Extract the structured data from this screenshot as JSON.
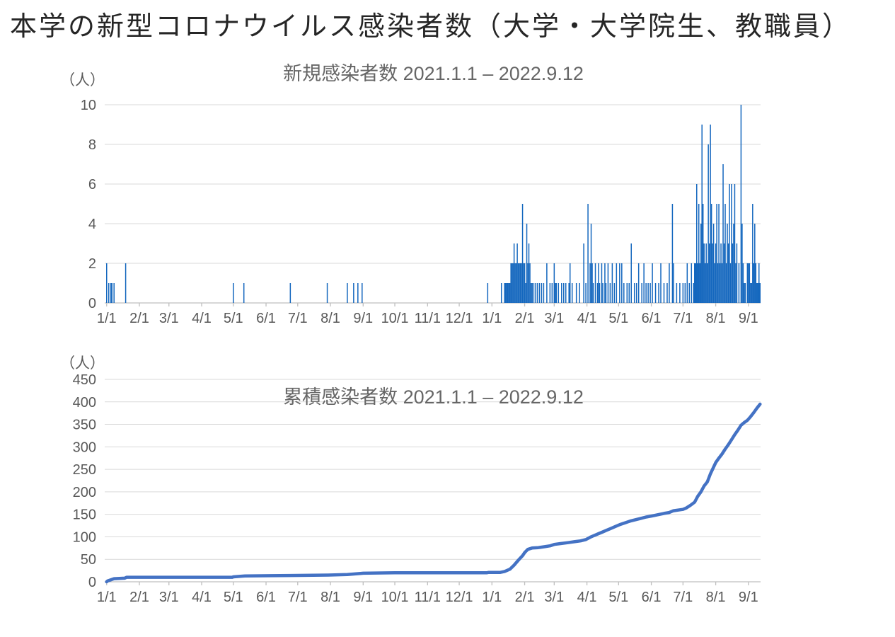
{
  "page_title": "本学の新型コロナウイルス感染者数（大学・大学院生、教職員）",
  "style": {
    "grid_color": "#d9d9d9",
    "axis_color": "#bfbfbf",
    "tick_text_color": "#595959",
    "title_color": "#666666",
    "page_title_color": "#262626"
  },
  "chart_data": [
    {
      "type": "bar",
      "title": "新規感染者数 2021.1.1 – 2022.9.12",
      "unit_label": "（人）",
      "ylabel": "人",
      "ylim": [
        0,
        10
      ],
      "yticks": [
        0,
        2,
        4,
        6,
        8,
        10
      ],
      "x_start": "2021-01-01",
      "x_end": "2022-09-12",
      "xtick_labels": [
        "1/1",
        "2/1",
        "3/1",
        "4/1",
        "5/1",
        "6/1",
        "7/1",
        "8/1",
        "9/1",
        "10/1",
        "11/1",
        "12/1",
        "1/1",
        "2/1",
        "3/1",
        "4/1",
        "5/1",
        "6/1",
        "7/1",
        "8/1",
        "9/1"
      ],
      "grid": true,
      "legend": "none",
      "bar_color": "#1467be",
      "daily_cases": [
        [
          "2021-01-01",
          2
        ],
        [
          "2021-01-03",
          1
        ],
        [
          "2021-01-05",
          1
        ],
        [
          "2021-01-06",
          1
        ],
        [
          "2021-01-08",
          1
        ],
        [
          "2021-01-19",
          2
        ],
        [
          "2021-05-01",
          1
        ],
        [
          "2021-05-11",
          1
        ],
        [
          "2021-06-24",
          1
        ],
        [
          "2021-07-29",
          1
        ],
        [
          "2021-08-17",
          1
        ],
        [
          "2021-08-23",
          1
        ],
        [
          "2021-08-27",
          1
        ],
        [
          "2021-08-31",
          1
        ],
        [
          "2021-12-28",
          1
        ],
        [
          "2022-01-10",
          1
        ],
        [
          "2022-01-13",
          1
        ],
        [
          "2022-01-14",
          1
        ],
        [
          "2022-01-15",
          1
        ],
        [
          "2022-01-16",
          1
        ],
        [
          "2022-01-17",
          1
        ],
        [
          "2022-01-18",
          1
        ],
        [
          "2022-01-19",
          2
        ],
        [
          "2022-01-20",
          2
        ],
        [
          "2022-01-21",
          2
        ],
        [
          "2022-01-22",
          3
        ],
        [
          "2022-01-23",
          2
        ],
        [
          "2022-01-24",
          2
        ],
        [
          "2022-01-25",
          3
        ],
        [
          "2022-01-26",
          2
        ],
        [
          "2022-01-27",
          2
        ],
        [
          "2022-01-28",
          2
        ],
        [
          "2022-01-29",
          2
        ],
        [
          "2022-01-30",
          5
        ],
        [
          "2022-01-31",
          2
        ],
        [
          "2022-02-01",
          2
        ],
        [
          "2022-02-02",
          1
        ],
        [
          "2022-02-03",
          4
        ],
        [
          "2022-02-04",
          2
        ],
        [
          "2022-02-05",
          3
        ],
        [
          "2022-02-06",
          2
        ],
        [
          "2022-02-07",
          1
        ],
        [
          "2022-02-08",
          1
        ],
        [
          "2022-02-09",
          1
        ],
        [
          "2022-02-11",
          1
        ],
        [
          "2022-02-13",
          1
        ],
        [
          "2022-02-15",
          1
        ],
        [
          "2022-02-17",
          1
        ],
        [
          "2022-02-19",
          1
        ],
        [
          "2022-02-22",
          2
        ],
        [
          "2022-02-25",
          1
        ],
        [
          "2022-02-27",
          1
        ],
        [
          "2022-03-01",
          2
        ],
        [
          "2022-03-02",
          1
        ],
        [
          "2022-03-03",
          1
        ],
        [
          "2022-03-05",
          1
        ],
        [
          "2022-03-08",
          1
        ],
        [
          "2022-03-10",
          1
        ],
        [
          "2022-03-12",
          1
        ],
        [
          "2022-03-15",
          1
        ],
        [
          "2022-03-16",
          2
        ],
        [
          "2022-03-18",
          1
        ],
        [
          "2022-03-22",
          1
        ],
        [
          "2022-03-25",
          1
        ],
        [
          "2022-03-29",
          3
        ],
        [
          "2022-03-31",
          1
        ],
        [
          "2022-04-02",
          5
        ],
        [
          "2022-04-04",
          2
        ],
        [
          "2022-04-05",
          4
        ],
        [
          "2022-04-06",
          2
        ],
        [
          "2022-04-07",
          1
        ],
        [
          "2022-04-09",
          2
        ],
        [
          "2022-04-11",
          1
        ],
        [
          "2022-04-12",
          2
        ],
        [
          "2022-04-13",
          1
        ],
        [
          "2022-04-15",
          2
        ],
        [
          "2022-04-16",
          1
        ],
        [
          "2022-04-18",
          2
        ],
        [
          "2022-04-19",
          1
        ],
        [
          "2022-04-21",
          2
        ],
        [
          "2022-04-23",
          1
        ],
        [
          "2022-04-25",
          2
        ],
        [
          "2022-04-27",
          1
        ],
        [
          "2022-04-29",
          2
        ],
        [
          "2022-05-02",
          2
        ],
        [
          "2022-05-04",
          2
        ],
        [
          "2022-05-06",
          1
        ],
        [
          "2022-05-09",
          1
        ],
        [
          "2022-05-11",
          1
        ],
        [
          "2022-05-13",
          3
        ],
        [
          "2022-05-16",
          1
        ],
        [
          "2022-05-18",
          1
        ],
        [
          "2022-05-20",
          2
        ],
        [
          "2022-05-23",
          1
        ],
        [
          "2022-05-25",
          2
        ],
        [
          "2022-05-27",
          1
        ],
        [
          "2022-05-29",
          1
        ],
        [
          "2022-05-31",
          1
        ],
        [
          "2022-06-02",
          2
        ],
        [
          "2022-06-05",
          1
        ],
        [
          "2022-06-08",
          1
        ],
        [
          "2022-06-10",
          2
        ],
        [
          "2022-06-13",
          1
        ],
        [
          "2022-06-16",
          1
        ],
        [
          "2022-06-18",
          2
        ],
        [
          "2022-06-21",
          5
        ],
        [
          "2022-06-22",
          2
        ],
        [
          "2022-06-25",
          1
        ],
        [
          "2022-06-28",
          1
        ],
        [
          "2022-07-01",
          1
        ],
        [
          "2022-07-03",
          1
        ],
        [
          "2022-07-05",
          2
        ],
        [
          "2022-07-07",
          1
        ],
        [
          "2022-07-09",
          2
        ],
        [
          "2022-07-11",
          1
        ],
        [
          "2022-07-12",
          2
        ],
        [
          "2022-07-13",
          2
        ],
        [
          "2022-07-14",
          6
        ],
        [
          "2022-07-15",
          2
        ],
        [
          "2022-07-16",
          5
        ],
        [
          "2022-07-17",
          2
        ],
        [
          "2022-07-18",
          4
        ],
        [
          "2022-07-19",
          9
        ],
        [
          "2022-07-20",
          5
        ],
        [
          "2022-07-21",
          3
        ],
        [
          "2022-07-22",
          2
        ],
        [
          "2022-07-23",
          3
        ],
        [
          "2022-07-24",
          2
        ],
        [
          "2022-07-25",
          8
        ],
        [
          "2022-07-26",
          3
        ],
        [
          "2022-07-27",
          9
        ],
        [
          "2022-07-28",
          5
        ],
        [
          "2022-07-29",
          3
        ],
        [
          "2022-07-30",
          4
        ],
        [
          "2022-07-31",
          2
        ],
        [
          "2022-08-01",
          3
        ],
        [
          "2022-08-02",
          5
        ],
        [
          "2022-08-03",
          2
        ],
        [
          "2022-08-04",
          5
        ],
        [
          "2022-08-05",
          2
        ],
        [
          "2022-08-06",
          3
        ],
        [
          "2022-08-07",
          2
        ],
        [
          "2022-08-08",
          7
        ],
        [
          "2022-08-09",
          3
        ],
        [
          "2022-08-10",
          5
        ],
        [
          "2022-08-11",
          2
        ],
        [
          "2022-08-12",
          4
        ],
        [
          "2022-08-13",
          3
        ],
        [
          "2022-08-14",
          6
        ],
        [
          "2022-08-15",
          2
        ],
        [
          "2022-08-16",
          6
        ],
        [
          "2022-08-17",
          3
        ],
        [
          "2022-08-18",
          4
        ],
        [
          "2022-08-19",
          6
        ],
        [
          "2022-08-20",
          2
        ],
        [
          "2022-08-21",
          3
        ],
        [
          "2022-08-23",
          2
        ],
        [
          "2022-08-25",
          10
        ],
        [
          "2022-08-26",
          4
        ],
        [
          "2022-08-27",
          2
        ],
        [
          "2022-08-28",
          1
        ],
        [
          "2022-08-29",
          1
        ],
        [
          "2022-08-31",
          2
        ],
        [
          "2022-09-01",
          2
        ],
        [
          "2022-09-02",
          2
        ],
        [
          "2022-09-03",
          1
        ],
        [
          "2022-09-04",
          1
        ],
        [
          "2022-09-05",
          5
        ],
        [
          "2022-09-06",
          2
        ],
        [
          "2022-09-07",
          4
        ],
        [
          "2022-09-08",
          2
        ],
        [
          "2022-09-09",
          1
        ],
        [
          "2022-09-10",
          1
        ],
        [
          "2022-09-11",
          2
        ],
        [
          "2022-09-12",
          1
        ]
      ]
    },
    {
      "type": "line",
      "title": "累積感染者数 2021.1.1 – 2022.9.12",
      "unit_label": "（人）",
      "ylabel": "人",
      "ylim": [
        0,
        450
      ],
      "yticks": [
        0,
        50,
        100,
        150,
        200,
        250,
        300,
        350,
        400,
        450
      ],
      "x_start": "2021-01-01",
      "x_end": "2022-09-12",
      "xtick_labels": [
        "1/1",
        "2/1",
        "3/1",
        "4/1",
        "5/1",
        "6/1",
        "7/1",
        "8/1",
        "9/1",
        "10/1",
        "11/1",
        "12/1",
        "1/1",
        "2/1",
        "3/1",
        "4/1",
        "5/1",
        "6/1",
        "7/1",
        "8/1",
        "9/1"
      ],
      "grid": true,
      "legend": "none",
      "line_color": "#4472c4",
      "points": [
        [
          "2021-01-01",
          0
        ],
        [
          "2021-01-02",
          2
        ],
        [
          "2021-01-08",
          7
        ],
        [
          "2021-01-18",
          8
        ],
        [
          "2021-01-20",
          10
        ],
        [
          "2021-02-01",
          10
        ],
        [
          "2021-04-30",
          10
        ],
        [
          "2021-05-01",
          11
        ],
        [
          "2021-05-12",
          13
        ],
        [
          "2021-06-24",
          14
        ],
        [
          "2021-07-30",
          15
        ],
        [
          "2021-08-17",
          16
        ],
        [
          "2021-09-01",
          19
        ],
        [
          "2021-10-01",
          20
        ],
        [
          "2021-12-27",
          20
        ],
        [
          "2021-12-29",
          21
        ],
        [
          "2022-01-09",
          21
        ],
        [
          "2022-01-13",
          23
        ],
        [
          "2022-01-18",
          28
        ],
        [
          "2022-01-22",
          37
        ],
        [
          "2022-01-26",
          48
        ],
        [
          "2022-01-30",
          58
        ],
        [
          "2022-02-01",
          65
        ],
        [
          "2022-02-04",
          72
        ],
        [
          "2022-02-08",
          75
        ],
        [
          "2022-02-14",
          76
        ],
        [
          "2022-02-20",
          78
        ],
        [
          "2022-02-25",
          80
        ],
        [
          "2022-03-01",
          83
        ],
        [
          "2022-03-07",
          85
        ],
        [
          "2022-03-14",
          87
        ],
        [
          "2022-03-20",
          89
        ],
        [
          "2022-03-26",
          91
        ],
        [
          "2022-03-31",
          94
        ],
        [
          "2022-04-04",
          99
        ],
        [
          "2022-04-08",
          103
        ],
        [
          "2022-04-12",
          107
        ],
        [
          "2022-04-16",
          111
        ],
        [
          "2022-04-20",
          115
        ],
        [
          "2022-04-24",
          119
        ],
        [
          "2022-04-28",
          123
        ],
        [
          "2022-05-02",
          127
        ],
        [
          "2022-05-07",
          131
        ],
        [
          "2022-05-12",
          135
        ],
        [
          "2022-05-17",
          138
        ],
        [
          "2022-05-22",
          141
        ],
        [
          "2022-05-27",
          144
        ],
        [
          "2022-06-01",
          146
        ],
        [
          "2022-06-07",
          149
        ],
        [
          "2022-06-13",
          152
        ],
        [
          "2022-06-18",
          154
        ],
        [
          "2022-06-22",
          158
        ],
        [
          "2022-06-28",
          160
        ],
        [
          "2022-07-01",
          161
        ],
        [
          "2022-07-04",
          164
        ],
        [
          "2022-07-08",
          170
        ],
        [
          "2022-07-12",
          177
        ],
        [
          "2022-07-15",
          190
        ],
        [
          "2022-07-18",
          200
        ],
        [
          "2022-07-21",
          213
        ],
        [
          "2022-07-24",
          222
        ],
        [
          "2022-07-27",
          240
        ],
        [
          "2022-07-30",
          255
        ],
        [
          "2022-08-01",
          265
        ],
        [
          "2022-08-04",
          275
        ],
        [
          "2022-08-07",
          284
        ],
        [
          "2022-08-10",
          295
        ],
        [
          "2022-08-13",
          305
        ],
        [
          "2022-08-16",
          316
        ],
        [
          "2022-08-19",
          327
        ],
        [
          "2022-08-22",
          337
        ],
        [
          "2022-08-25",
          348
        ],
        [
          "2022-08-28",
          354
        ],
        [
          "2022-08-31",
          359
        ],
        [
          "2022-09-03",
          367
        ],
        [
          "2022-09-06",
          376
        ],
        [
          "2022-09-09",
          386
        ],
        [
          "2022-09-12",
          395
        ]
      ]
    }
  ]
}
